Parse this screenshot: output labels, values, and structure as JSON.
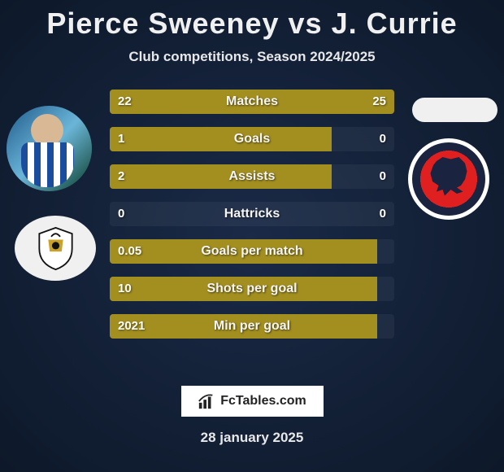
{
  "title": "Pierce Sweeney vs J. Currie",
  "subtitle": "Club competitions, Season 2024/2025",
  "date": "28 january 2025",
  "footer_brand": "FcTables.com",
  "colors": {
    "bar_left": "#a38f1f",
    "bar_right": "#a38f1f",
    "bar_track": "rgba(255,255,255,0.05)"
  },
  "stats": [
    {
      "label": "Matches",
      "left_val": "22",
      "right_val": "25",
      "left_pct": 47,
      "right_pct": 53
    },
    {
      "label": "Goals",
      "left_val": "1",
      "right_val": "0",
      "left_pct": 78,
      "right_pct": 0
    },
    {
      "label": "Assists",
      "left_val": "2",
      "right_val": "0",
      "left_pct": 78,
      "right_pct": 0
    },
    {
      "label": "Hattricks",
      "left_val": "0",
      "right_val": "0",
      "left_pct": 0,
      "right_pct": 0
    },
    {
      "label": "Goals per match",
      "left_val": "0.05",
      "right_val": "",
      "left_pct": 94,
      "right_pct": 0
    },
    {
      "label": "Shots per goal",
      "left_val": "10",
      "right_val": "",
      "left_pct": 94,
      "right_pct": 0
    },
    {
      "label": "Min per goal",
      "left_val": "2021",
      "right_val": "",
      "left_pct": 94,
      "right_pct": 0
    }
  ]
}
